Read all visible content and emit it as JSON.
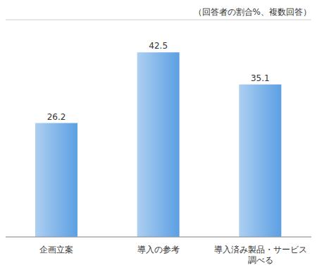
{
  "chart_data": {
    "type": "bar",
    "subtitle": "（回答者の割合%、複数回答）",
    "categories": [
      "企画立案",
      "導入の参考",
      "導入済み製品・サービス調べる"
    ],
    "values": [
      26.2,
      42.5,
      35.1
    ],
    "color": "#5b9fe3",
    "ylim": [
      0,
      50
    ],
    "yticks": [
      0,
      10,
      20,
      30,
      40,
      50
    ],
    "grid": true,
    "data_labels": true,
    "tick_labels": "x"
  }
}
